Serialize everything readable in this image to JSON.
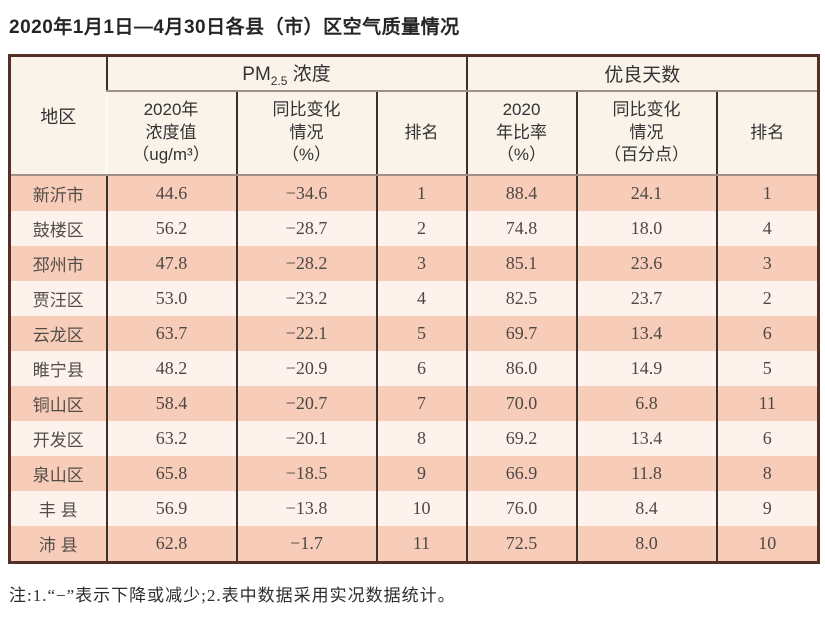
{
  "title": "2020年1月1日—4月30日各县（市）区空气质量情况",
  "footnote": "注:1.“−”表示下降或减少;2.表中数据采用实况数据统计。",
  "table": {
    "region_header": "地区",
    "pm_group": {
      "main": "PM",
      "sub": "2.5",
      "rest": " 浓度"
    },
    "good_group": "优良天数",
    "subheaders": {
      "pm_value": "2020年\n浓度值\n（ug/m³）",
      "pm_change": "同比变化\n情况\n（%）",
      "pm_rank": "排名",
      "good_rate": "2020\n年比率\n（%）",
      "good_change": "同比变化\n情况\n（百分点）",
      "good_rank": "排名"
    }
  },
  "chart_data": {
    "type": "table",
    "title": "2020年1月1日—4月30日各县（市）区空气质量情况",
    "column_groups": [
      "PM2.5浓度",
      "优良天数"
    ],
    "columns": [
      "地区",
      "PM2.5浓度 2020年浓度值（ug/m³）",
      "PM2.5浓度 同比变化情况（%）",
      "PM2.5浓度 排名",
      "优良天数 2020年比率（%）",
      "优良天数 同比变化情况（百分点）",
      "优良天数 排名"
    ],
    "rows": [
      [
        "新沂市",
        "44.6",
        "−34.6",
        "1",
        "88.4",
        "24.1",
        "1"
      ],
      [
        "鼓楼区",
        "56.2",
        "−28.7",
        "2",
        "74.8",
        "18.0",
        "4"
      ],
      [
        "邳州市",
        "47.8",
        "−28.2",
        "3",
        "85.1",
        "23.6",
        "3"
      ],
      [
        "贾汪区",
        "53.0",
        "−23.2",
        "4",
        "82.5",
        "23.7",
        "2"
      ],
      [
        "云龙区",
        "63.7",
        "−22.1",
        "5",
        "69.7",
        "13.4",
        "6"
      ],
      [
        "睢宁县",
        "48.2",
        "−20.9",
        "6",
        "86.0",
        "14.9",
        "5"
      ],
      [
        "铜山区",
        "58.4",
        "−20.7",
        "7",
        "70.0",
        "6.8",
        "11"
      ],
      [
        "开发区",
        "63.2",
        "−20.1",
        "8",
        "69.2",
        "13.4",
        "6"
      ],
      [
        "泉山区",
        "65.8",
        "−18.5",
        "9",
        "66.9",
        "11.8",
        "8"
      ],
      [
        "丰 县",
        "56.9",
        "−13.8",
        "10",
        "76.0",
        "8.4",
        "9"
      ],
      [
        "沛 县",
        "62.8",
        "−1.7",
        "11",
        "72.5",
        "8.0",
        "10"
      ]
    ],
    "footnote": "注:1.“−”表示下降或减少;2.表中数据采用实况数据统计。"
  },
  "colors": {
    "row_odd": "#f7cdba",
    "row_even": "#fdf3ec",
    "header_bg": "#faf3ea",
    "outer_border": "#542f26",
    "inner_border": "#3a322c"
  }
}
